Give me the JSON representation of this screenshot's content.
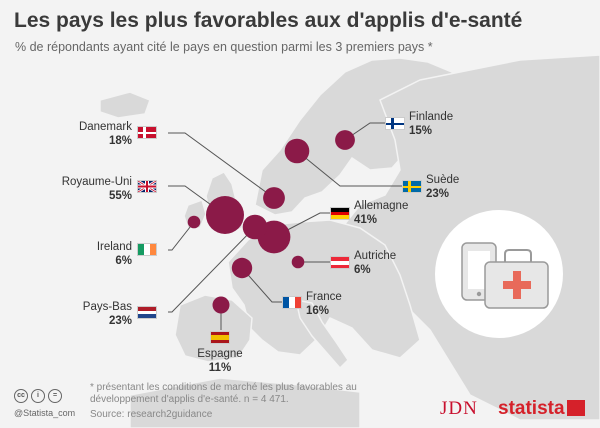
{
  "header": {
    "title": "Les pays les plus favorables aux d'applis d'e-santé",
    "subtitle": "% de répondants ayant cité le pays en question parmi les 3 premiers pays *"
  },
  "chart_data": {
    "type": "bubble-map",
    "title": "Les pays les plus favorables aux d'applis d'e-santé",
    "subtitle": "% de répondants ayant cité le pays en question parmi les 3 premiers pays *",
    "categories": [
      "Royaume-Uni",
      "Allemagne",
      "Suède",
      "Danemark",
      "Pays-Bas",
      "France",
      "Finlande",
      "Espagne",
      "Ireland",
      "Autriche"
    ],
    "values": [
      55,
      41,
      23,
      18,
      23,
      16,
      15,
      11,
      6,
      6
    ],
    "labels": [
      "55%",
      "41%",
      "23%",
      "18%",
      "23%",
      "16%",
      "15%",
      "11%",
      "6%",
      "6%"
    ],
    "unit": "%",
    "bubble_color": "#8b1a48"
  },
  "colors": {
    "bubble": "#8b1a48",
    "land": "#d8d8d8",
    "sea": "#f3f3f3",
    "leader": "#555555",
    "brand_red": "#d5212a"
  },
  "footer": {
    "footnote": "* présentant les conditions de marché les plus favorables au développement d'applis d'e-santé. n = 4 471.",
    "source": "Source: research2guidance",
    "handle": "@Statista_com",
    "license_icons": [
      "cc",
      "i",
      "="
    ],
    "jdn": "JDN",
    "statista": "statista"
  },
  "illustration": {
    "icon": "phone-and-medical-case-icon"
  }
}
